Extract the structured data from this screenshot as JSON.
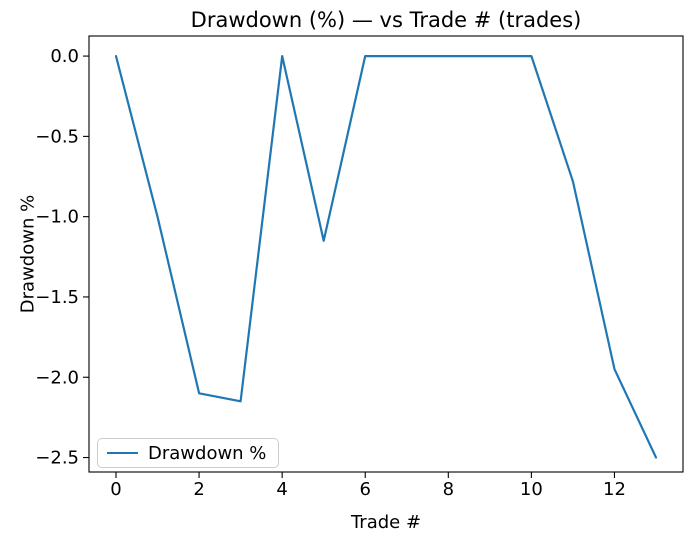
{
  "chart_data": {
    "type": "line",
    "title": "Drawdown (%) — vs Trade # (trades)",
    "xlabel": "Trade #",
    "ylabel": "Drawdown %",
    "x": [
      0,
      1,
      2,
      3,
      4,
      5,
      6,
      7,
      8,
      9,
      10,
      11,
      12,
      13
    ],
    "series": [
      {
        "name": "Drawdown %",
        "values": [
          0.0,
          -1.0,
          -2.1,
          -2.15,
          0.0,
          -1.15,
          0.0,
          0.0,
          0.0,
          0.0,
          0.0,
          -0.78,
          -1.95,
          -2.5
        ],
        "color": "#1f77b4",
        "linewidth": 2.2
      }
    ],
    "legend": {
      "labels": [
        "Drawdown %"
      ],
      "position": "lower left"
    },
    "xticks": {
      "values": [
        0,
        2,
        4,
        6,
        8,
        10,
        12
      ],
      "labels": [
        "0",
        "2",
        "4",
        "6",
        "8",
        "10",
        "12"
      ]
    },
    "yticks": {
      "values": [
        0.0,
        -0.5,
        -1.0,
        -1.5,
        -2.0,
        -2.5
      ],
      "labels": [
        "0.0",
        "−0.5",
        "−1.0",
        "−1.5",
        "−2.0",
        "−2.5"
      ]
    },
    "xlim": [
      -0.65,
      13.65
    ],
    "ylim": [
      -2.59,
      0.125
    ],
    "grid": false,
    "background_color": "#ffffff",
    "spine_color": "#000000",
    "tick_label_color": "#000000"
  }
}
